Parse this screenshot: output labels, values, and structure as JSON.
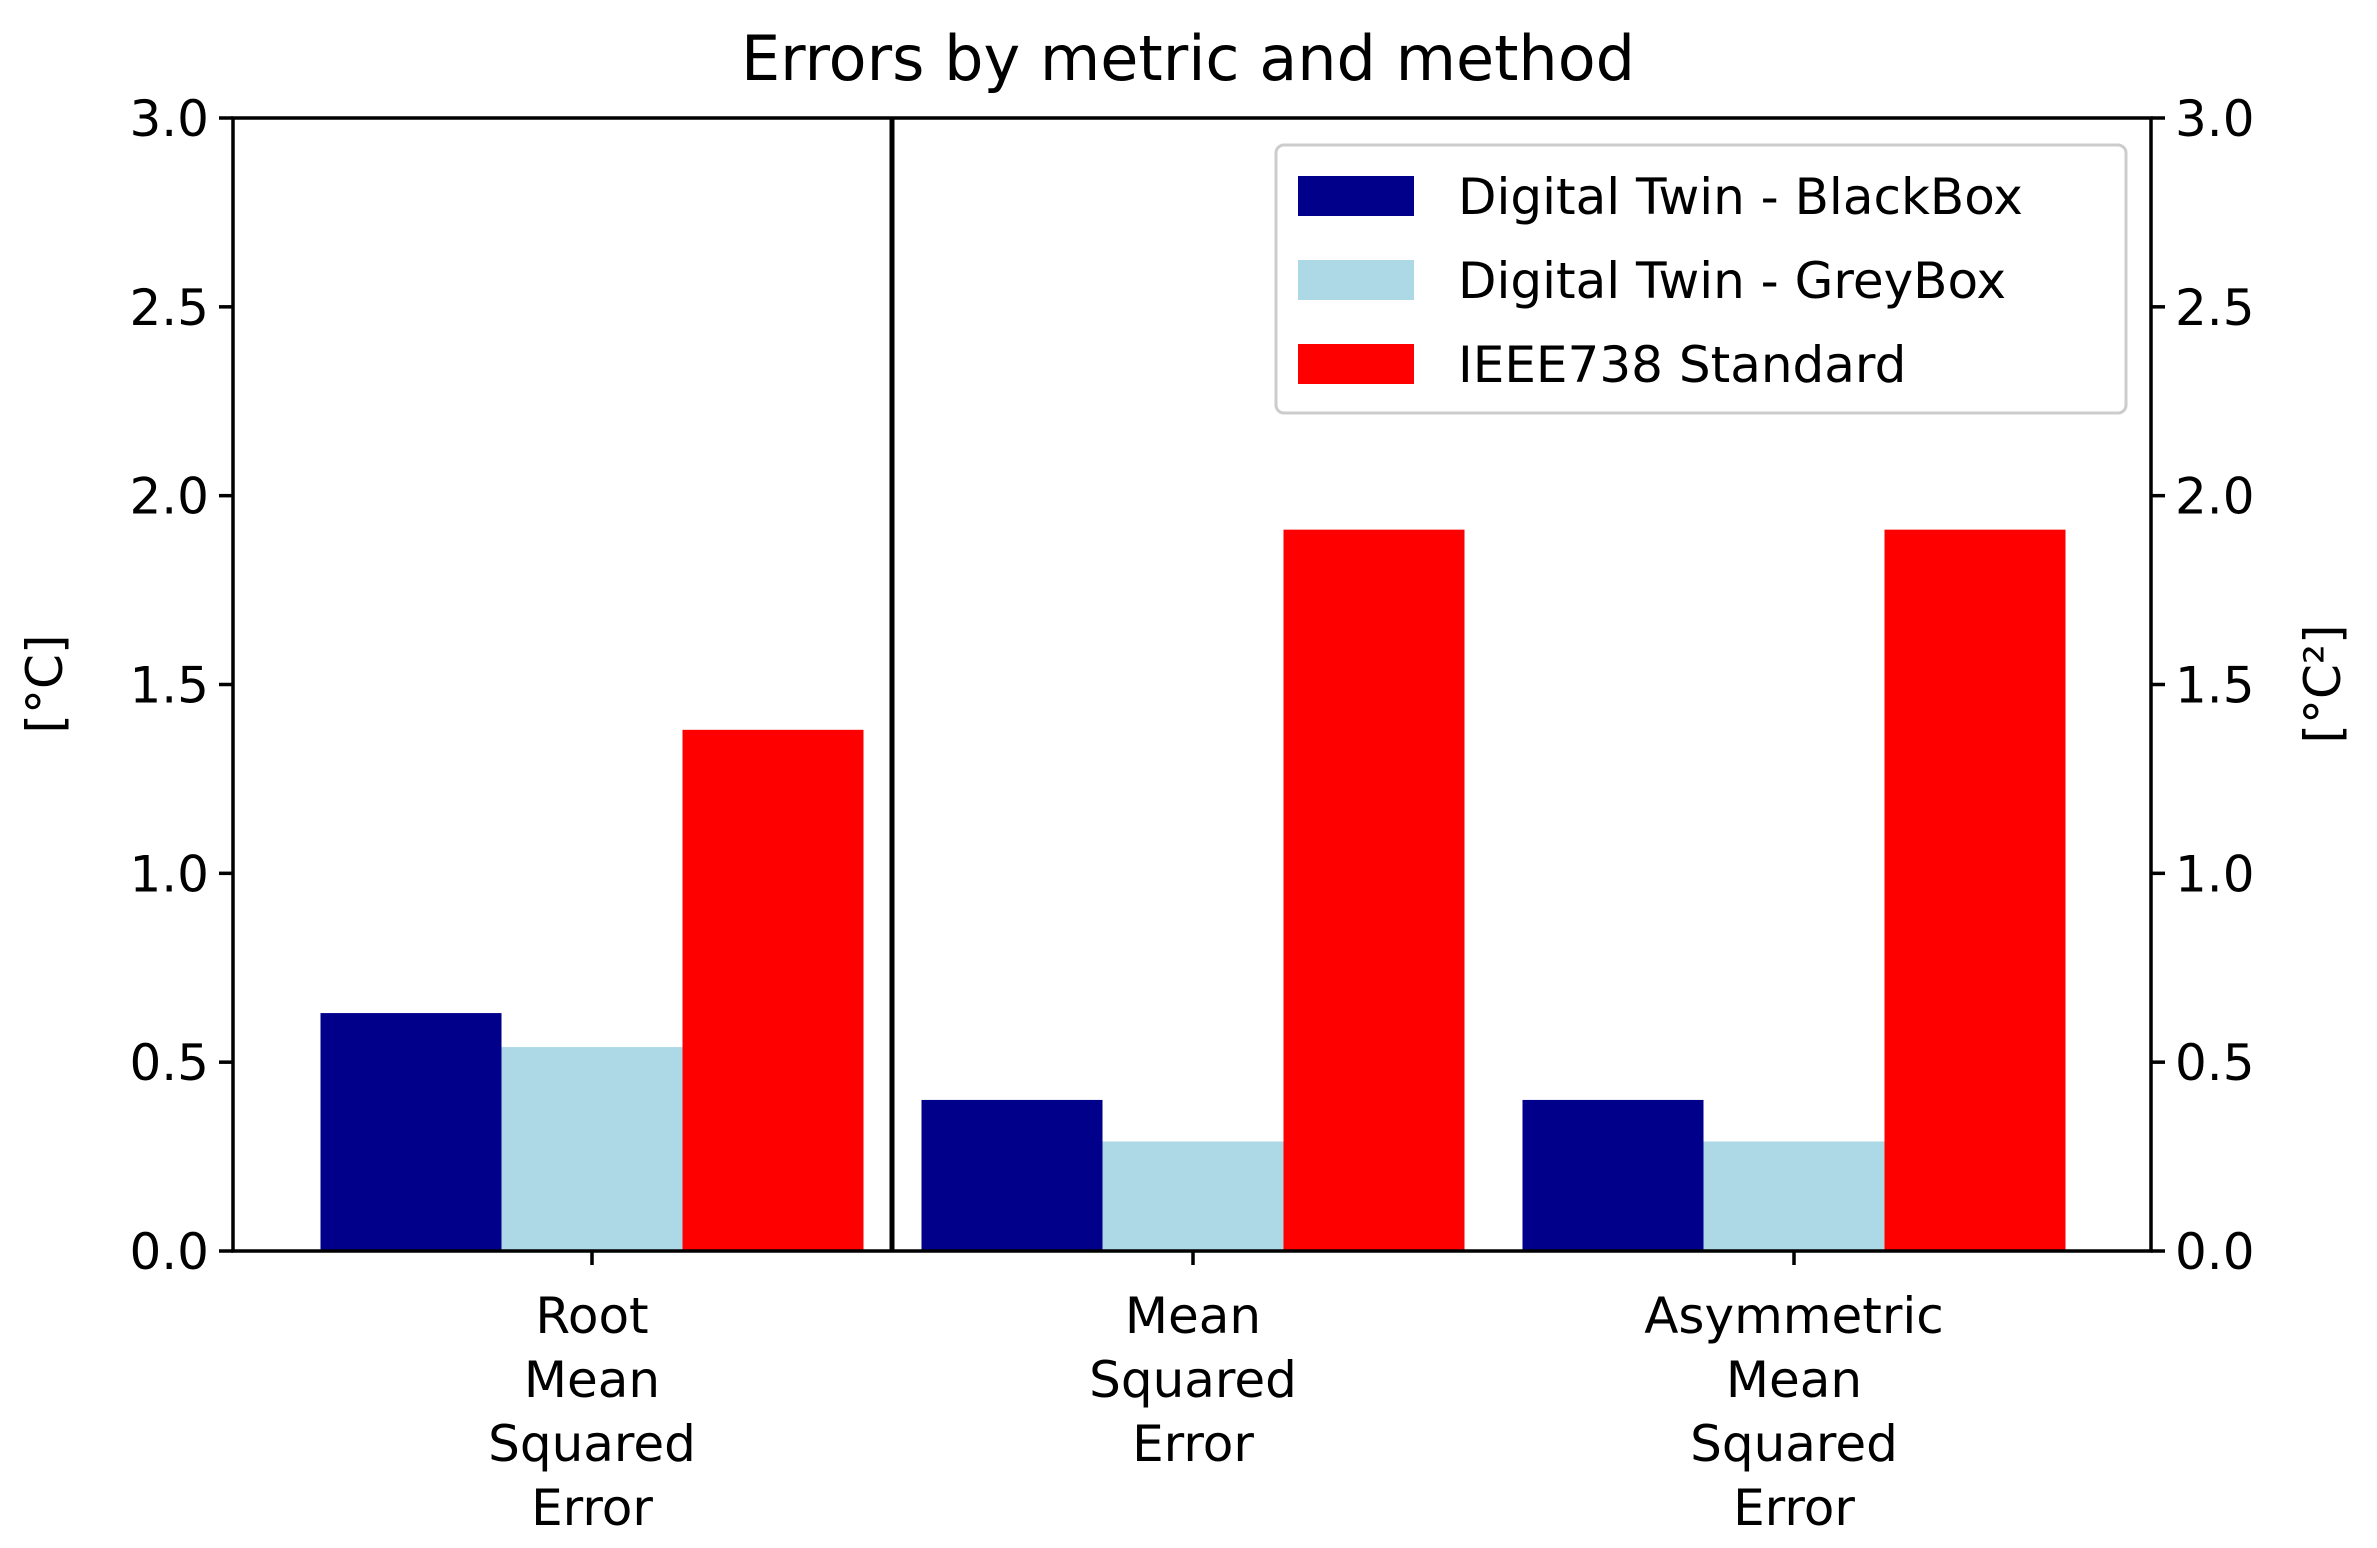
{
  "chart_data": {
    "type": "bar",
    "title": "Errors by metric and method",
    "categories": [
      [
        "Root",
        "Mean",
        "Squared",
        "Error"
      ],
      [
        "Mean",
        "Squared",
        "Error"
      ],
      [
        "Asymmetric",
        "Mean",
        "Squared",
        "Error"
      ]
    ],
    "series": [
      {
        "name": "Digital Twin - BlackBox",
        "color": "#00008b",
        "values": [
          0.63,
          0.4,
          0.4
        ]
      },
      {
        "name": "Digital Twin - GreyBox",
        "color": "#add8e6",
        "values": [
          0.54,
          0.29,
          0.29
        ]
      },
      {
        "name": "IEEE738 Standard",
        "color": "#ff0000",
        "values": [
          1.38,
          1.91,
          1.91
        ]
      }
    ],
    "ylabel_left": "[°C]",
    "ylabel_right": "[°C²]",
    "ylim": [
      0,
      3.0
    ],
    "yticks": [
      "0.0",
      "0.5",
      "1.0",
      "1.5",
      "2.0",
      "2.5",
      "3.0"
    ],
    "grid": false,
    "legend_position": "top-right",
    "separator_after_category": 0
  }
}
